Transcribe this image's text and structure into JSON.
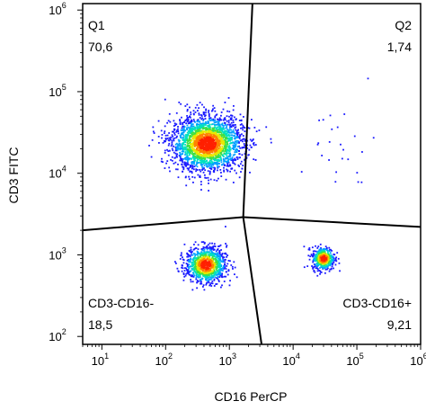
{
  "chart_data": {
    "type": "scatter",
    "xlabel": "CD16 PerCP",
    "ylabel": "CD3 FITC",
    "xscale": "log",
    "yscale": "log",
    "xlim": [
      5,
      1000000
    ],
    "ylim": [
      80,
      1200000
    ],
    "x_ticks": [
      {
        "base": "10",
        "exp": "1",
        "value": 10
      },
      {
        "base": "10",
        "exp": "2",
        "value": 100
      },
      {
        "base": "10",
        "exp": "3",
        "value": 1000
      },
      {
        "base": "10",
        "exp": "4",
        "value": 10000
      },
      {
        "base": "10",
        "exp": "5",
        "value": 100000
      },
      {
        "base": "10",
        "exp": "6",
        "value": 1000000
      }
    ],
    "y_ticks": [
      {
        "base": "10",
        "exp": "2",
        "value": 100
      },
      {
        "base": "10",
        "exp": "3",
        "value": 1000
      },
      {
        "base": "10",
        "exp": "4",
        "value": 10000
      },
      {
        "base": "10",
        "exp": "5",
        "value": 100000
      },
      {
        "base": "10",
        "exp": "6",
        "value": 1000000
      }
    ],
    "gates": [
      {
        "name": "Q1",
        "percent": "70,6"
      },
      {
        "name": "Q2",
        "percent": "1,74"
      },
      {
        "name": "CD3-CD16-",
        "percent": "18,5"
      },
      {
        "name": "CD3-CD16+",
        "percent": "9,21"
      }
    ],
    "gate_lines": [
      {
        "from": [
          1650,
          2900
        ],
        "to": [
          2300,
          1200000
        ]
      },
      {
        "from": [
          1650,
          2900
        ],
        "to": [
          5,
          2000
        ]
      },
      {
        "from": [
          1650,
          2900
        ],
        "to": [
          1000000,
          2200
        ]
      },
      {
        "from": [
          1650,
          2900
        ],
        "to": [
          3200,
          80
        ]
      }
    ],
    "populations": [
      {
        "name": "Q1",
        "center": [
          450,
          23000
        ],
        "spread": [
          0.28,
          0.17
        ],
        "count": 2300
      },
      {
        "name": "CD3-CD16-",
        "center": [
          430,
          750
        ],
        "spread": [
          0.16,
          0.11
        ],
        "count": 1000
      },
      {
        "name": "CD3-CD16+",
        "center": [
          30000,
          900
        ],
        "spread": [
          0.09,
          0.07
        ],
        "count": 450
      },
      {
        "name": "Q2",
        "center": [
          50000,
          22000
        ],
        "spread": [
          0.3,
          0.3
        ],
        "count": 25
      }
    ],
    "density_colors": [
      "#1a1aff",
      "#00a0ff",
      "#00e0c0",
      "#40e040",
      "#e8e800",
      "#ff8000",
      "#ff2000"
    ]
  }
}
